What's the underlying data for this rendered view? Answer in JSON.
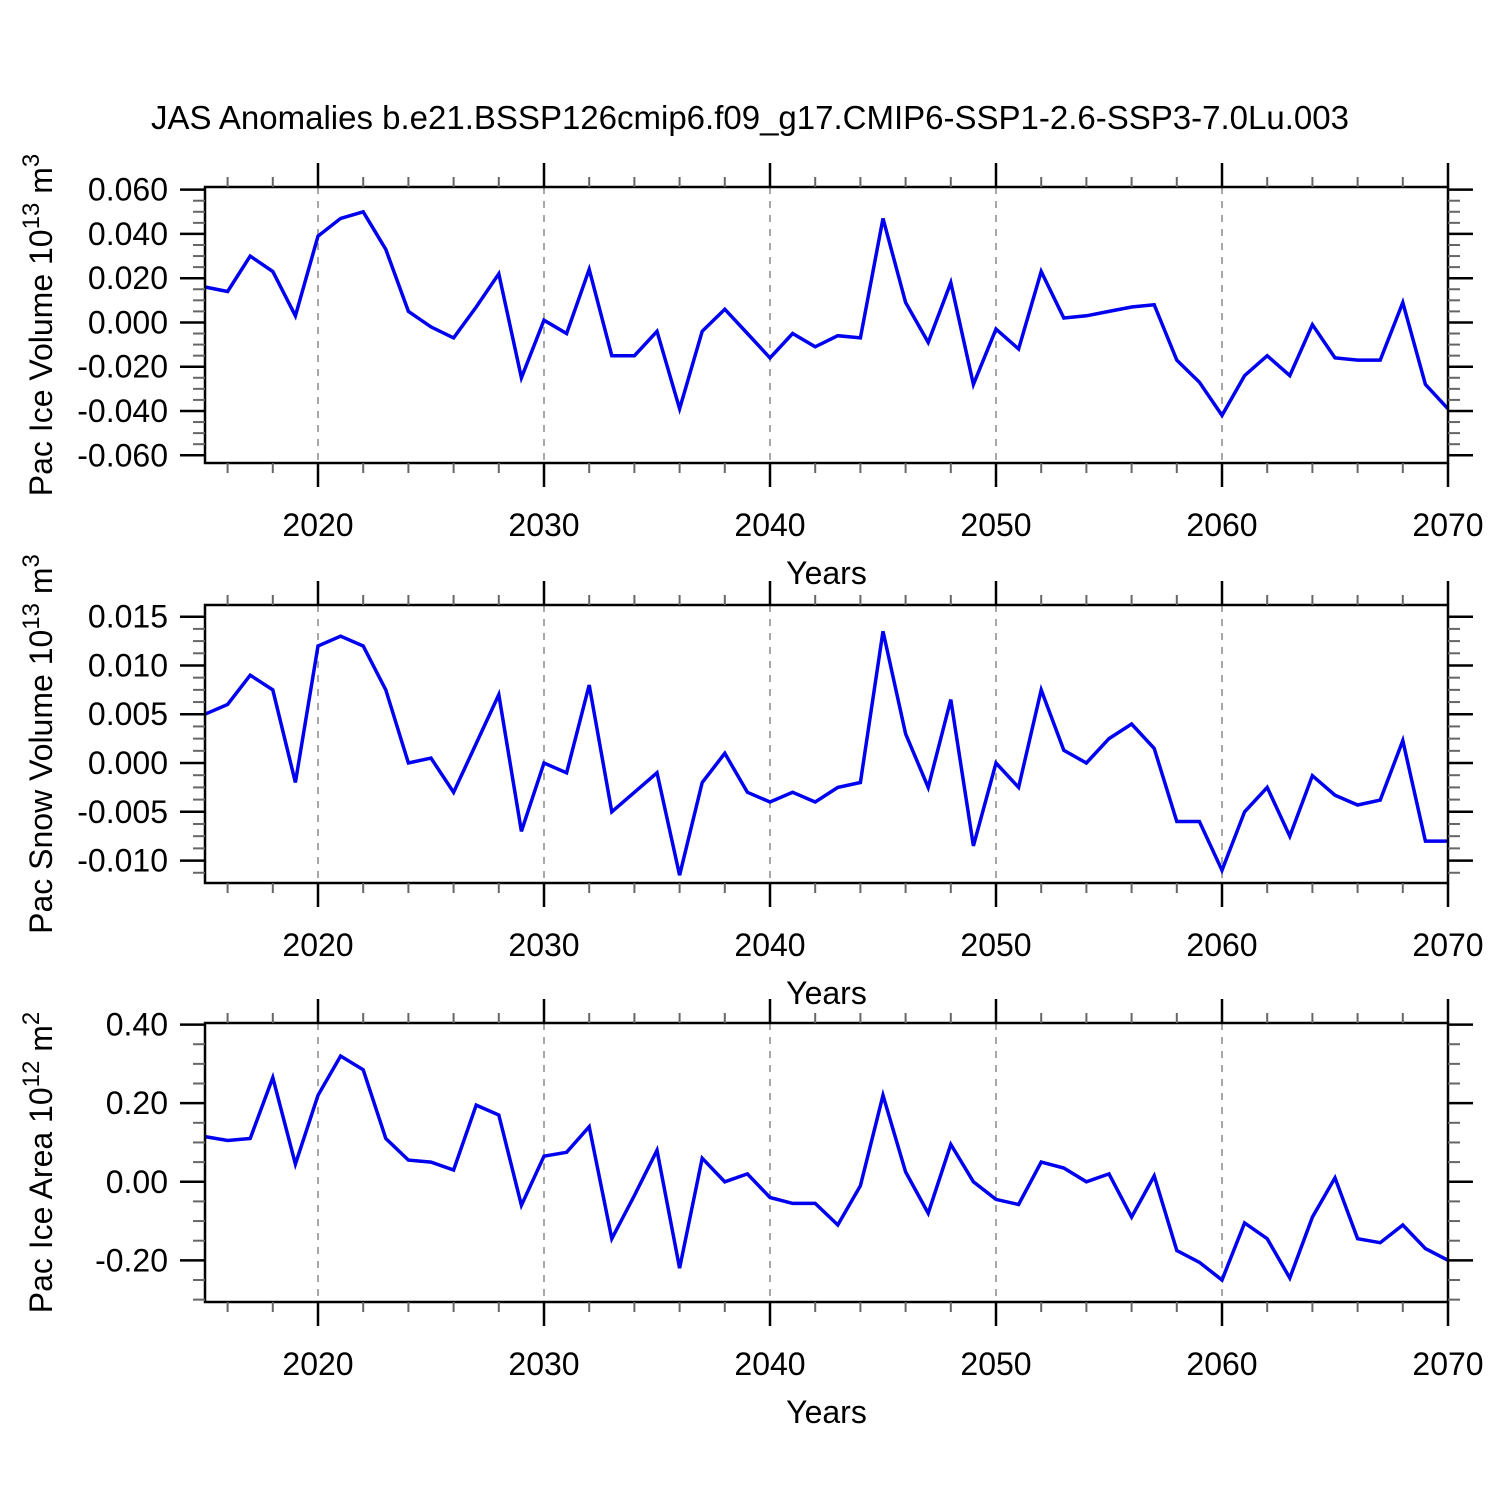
{
  "title": "JAS Anomalies b.e21.BSSP126cmip6.f09_g17.CMIP6-SSP1-2.6-SSP3-7.0Lu.003",
  "colors": {
    "line": "#0000f0",
    "grid": "#a8a8a8",
    "axis": "#000000",
    "minor_tick": "#666666",
    "background": "#ffffff"
  },
  "chart_data": [
    {
      "type": "line",
      "name": "pac-ice-volume",
      "ylabel": {
        "base": "Pac Ice Volume 10",
        "sup": "13",
        "base2": " m",
        "sup2": "3"
      },
      "xlabel": "Years",
      "x_start": 2015,
      "x_step": 1,
      "xlim": [
        2015,
        2070
      ],
      "xticks": [
        2020,
        2030,
        2040,
        2050,
        2060,
        2070
      ],
      "x_minor_step": 2,
      "grid_x": [
        2020,
        2030,
        2040,
        2050,
        2060
      ],
      "ylim": [
        -0.0635,
        0.0612
      ],
      "yticks": [
        0.06,
        0.04,
        0.02,
        0.0,
        -0.02,
        -0.04,
        -0.06
      ],
      "ytick_decimals": 3,
      "y_minor_step": 0.005,
      "grid_on": false,
      "legend": "none",
      "values": [
        0.016,
        0.014,
        0.03,
        0.023,
        0.003,
        0.039,
        0.047,
        0.05,
        0.033,
        0.005,
        -0.002,
        -0.007,
        0.007,
        0.022,
        -0.025,
        0.001,
        -0.005,
        0.024,
        -0.015,
        -0.015,
        -0.004,
        -0.039,
        -0.004,
        0.006,
        -0.005,
        -0.016,
        -0.005,
        -0.011,
        -0.006,
        -0.007,
        0.047,
        0.009,
        -0.009,
        0.018,
        -0.028,
        -0.003,
        -0.012,
        0.023,
        0.002,
        0.003,
        0.005,
        0.007,
        0.008,
        -0.017,
        -0.027,
        -0.042,
        -0.024,
        -0.015,
        -0.024,
        -0.001,
        -0.016,
        -0.017,
        -0.017,
        0.009,
        -0.028,
        -0.039
      ]
    },
    {
      "type": "line",
      "name": "pac-snow-volume",
      "ylabel": {
        "base": "Pac Snow Volume 10",
        "sup": "13",
        "base2": " m",
        "sup2": "3"
      },
      "xlabel": "Years",
      "x_start": 2015,
      "x_step": 1,
      "xlim": [
        2015,
        2070
      ],
      "xticks": [
        2020,
        2030,
        2040,
        2050,
        2060,
        2070
      ],
      "x_minor_step": 2,
      "grid_x": [
        2020,
        2030,
        2040,
        2050,
        2060
      ],
      "ylim": [
        -0.0123,
        0.0162
      ],
      "yticks": [
        0.015,
        0.01,
        0.005,
        0.0,
        -0.005,
        -0.01
      ],
      "ytick_decimals": 3,
      "y_minor_step": 0.00125,
      "grid_on": false,
      "legend": "none",
      "values": [
        0.005,
        0.006,
        0.009,
        0.0075,
        -0.002,
        0.012,
        0.013,
        0.012,
        0.0075,
        0.0,
        0.0005,
        -0.003,
        0.002,
        0.007,
        -0.007,
        0.0,
        -0.001,
        0.008,
        -0.005,
        -0.003,
        -0.001,
        -0.0115,
        -0.002,
        0.001,
        -0.003,
        -0.004,
        -0.003,
        -0.004,
        -0.0025,
        -0.002,
        0.0135,
        0.003,
        -0.0025,
        0.0065,
        -0.0085,
        0.0,
        -0.0025,
        0.0075,
        0.0013,
        0.0,
        0.0025,
        0.004,
        0.0015,
        -0.006,
        -0.006,
        -0.011,
        -0.005,
        -0.0025,
        -0.0075,
        -0.0013,
        -0.0033,
        -0.0043,
        -0.0038,
        0.0023,
        -0.008,
        -0.008
      ]
    },
    {
      "type": "line",
      "name": "pac-ice-area",
      "ylabel": {
        "base": "Pac Ice Area 10",
        "sup": "12",
        "base2": " m",
        "sup2": "2"
      },
      "xlabel": "Years",
      "x_start": 2015,
      "x_step": 1,
      "xlim": [
        2015,
        2070
      ],
      "xticks": [
        2020,
        2030,
        2040,
        2050,
        2060,
        2070
      ],
      "x_minor_step": 2,
      "grid_x": [
        2020,
        2030,
        2040,
        2050,
        2060
      ],
      "ylim": [
        -0.306,
        0.404
      ],
      "yticks": [
        0.4,
        0.2,
        0.0,
        -0.2
      ],
      "ytick_decimals": 2,
      "y_minor_step": 0.05,
      "grid_on": false,
      "legend": "none",
      "values": [
        0.115,
        0.105,
        0.11,
        0.265,
        0.045,
        0.22,
        0.32,
        0.285,
        0.11,
        0.055,
        0.05,
        0.03,
        0.195,
        0.17,
        -0.06,
        0.065,
        0.075,
        0.14,
        -0.145,
        -0.035,
        0.08,
        -0.22,
        0.06,
        0.0,
        0.02,
        -0.04,
        -0.055,
        -0.055,
        -0.11,
        -0.01,
        0.22,
        0.025,
        -0.08,
        0.095,
        0.0,
        -0.045,
        -0.058,
        0.05,
        0.035,
        0.0,
        0.02,
        -0.09,
        0.015,
        -0.175,
        -0.205,
        -0.25,
        -0.105,
        -0.145,
        -0.245,
        -0.09,
        0.01,
        -0.145,
        -0.155,
        -0.11,
        -0.17,
        -0.2
      ]
    }
  ]
}
